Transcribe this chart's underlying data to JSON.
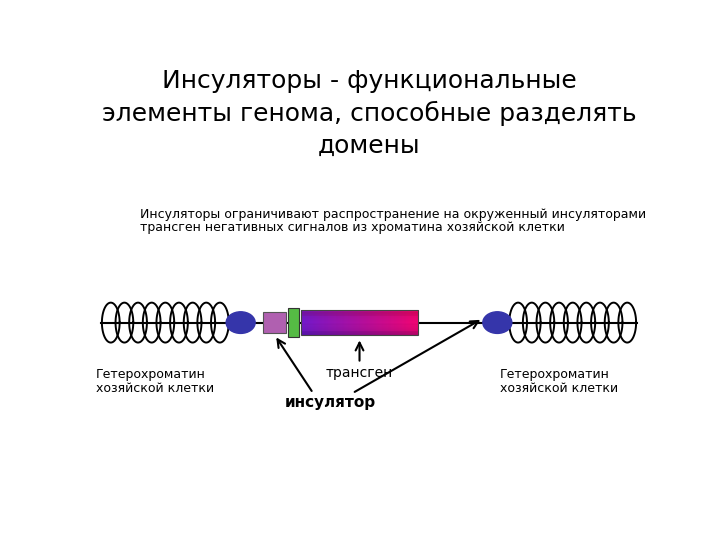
{
  "title": "Инсуляторы - функциональные\nэлементы генома, способные разделять\nдомены",
  "subtitle_line1": "Инсуляторы ограничивают распространение на окруженный инсуляторами",
  "subtitle_line2": "трансген негативных сигналов из хроматина хозяйской клетки",
  "label_transgene": "трансген",
  "label_insulator": "инсулятор",
  "label_heterochromatin_left1": "Гетерохроматин",
  "label_heterochromatin_left2": "хозяйской клетки",
  "label_heterochromatin_right1": "Гетерохроматин",
  "label_heterochromatin_right2": "хозяйской клетки",
  "bg_color": "#ffffff",
  "line_color": "#000000",
  "circle_color": "#3535aa",
  "square_color": "#b060b0",
  "insulator_color": "#55bb44",
  "coil_color": "#000000",
  "title_fontsize": 18,
  "subtitle_fontsize": 9,
  "label_fontsize": 9
}
